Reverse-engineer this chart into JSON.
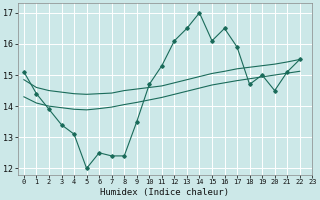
{
  "xlabel": "Humidex (Indice chaleur)",
  "xlim": [
    -0.5,
    23
  ],
  "ylim": [
    11.8,
    17.3
  ],
  "yticks": [
    12,
    13,
    14,
    15,
    16,
    17
  ],
  "xticks": [
    0,
    1,
    2,
    3,
    4,
    5,
    6,
    7,
    8,
    9,
    10,
    11,
    12,
    13,
    14,
    15,
    16,
    17,
    18,
    19,
    20,
    21,
    22,
    23
  ],
  "bg_color": "#cce8e8",
  "grid_color": "#ffffff",
  "line_color": "#1a6b5a",
  "line1_x": [
    0,
    1,
    2,
    3,
    4,
    5,
    6,
    7,
    8,
    9,
    10,
    11,
    12,
    13,
    14,
    15,
    16,
    17,
    18,
    19,
    20,
    21,
    22
  ],
  "line1_y": [
    15.1,
    14.4,
    13.9,
    13.4,
    13.1,
    12.0,
    12.5,
    12.4,
    12.4,
    13.5,
    14.7,
    15.3,
    16.1,
    16.5,
    17.0,
    16.1,
    16.5,
    15.9,
    14.7,
    15.0,
    14.5,
    15.1,
    15.5
  ],
  "line2_x": [
    0,
    1,
    2,
    3,
    4,
    5,
    6,
    7,
    8,
    9,
    10,
    11,
    12,
    13,
    14,
    15,
    16,
    17,
    18,
    19,
    20,
    21,
    22
  ],
  "line2_y": [
    14.85,
    14.6,
    14.5,
    14.45,
    14.4,
    14.38,
    14.4,
    14.42,
    14.5,
    14.55,
    14.6,
    14.65,
    14.75,
    14.85,
    14.95,
    15.05,
    15.12,
    15.2,
    15.25,
    15.3,
    15.35,
    15.42,
    15.5
  ],
  "line3_x": [
    0,
    1,
    2,
    3,
    4,
    5,
    6,
    7,
    8,
    9,
    10,
    11,
    12,
    13,
    14,
    15,
    16,
    17,
    18,
    19,
    20,
    21,
    22
  ],
  "line3_y": [
    14.3,
    14.1,
    14.0,
    13.95,
    13.9,
    13.88,
    13.92,
    13.97,
    14.05,
    14.12,
    14.2,
    14.28,
    14.38,
    14.48,
    14.58,
    14.68,
    14.75,
    14.82,
    14.88,
    14.94,
    15.0,
    15.06,
    15.12
  ]
}
